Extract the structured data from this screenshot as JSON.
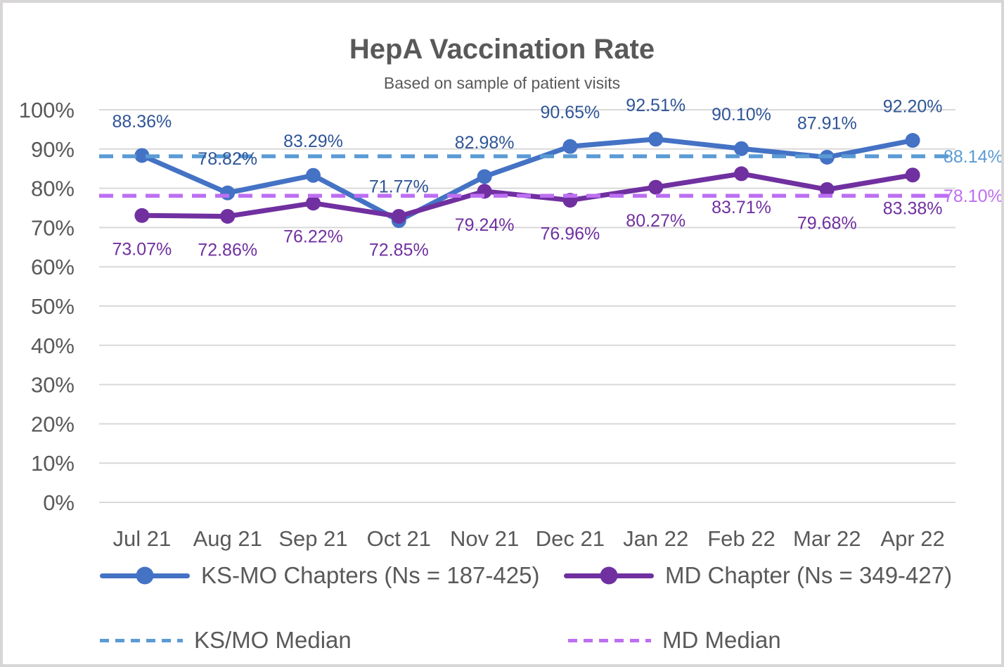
{
  "chart_data": {
    "type": "line",
    "title": "HepA Vaccination Rate",
    "subtitle": "Based on sample of patient visits",
    "categories": [
      "Jul 21",
      "Aug 21",
      "Sep 21",
      "Oct 21",
      "Nov 21",
      "Dec 21",
      "Jan 22",
      "Feb 22",
      "Mar 22",
      "Apr 22"
    ],
    "series": [
      {
        "name": "KS-MO Chapters (Ns = 187-425)",
        "color": "#4472C4",
        "label_color": "#2F5597",
        "values": [
          88.36,
          78.82,
          83.29,
          71.77,
          82.98,
          90.65,
          92.51,
          90.1,
          87.91,
          92.2
        ],
        "data_labels": [
          "88.36%",
          "78.82%",
          "83.29%",
          "71.77%",
          "82.98%",
          "90.65%",
          "92.51%",
          "90.10%",
          "87.91%",
          "92.20%"
        ]
      },
      {
        "name": "MD Chapter (Ns = 349-427)",
        "color": "#7030A0",
        "label_color": "#7030A0",
        "values": [
          73.07,
          72.86,
          76.22,
          72.85,
          79.24,
          76.96,
          80.27,
          83.71,
          79.68,
          83.38
        ],
        "data_labels": [
          "73.07%",
          "72.86%",
          "76.22%",
          "72.85%",
          "79.24%",
          "76.96%",
          "80.27%",
          "83.71%",
          "79.68%",
          "83.38%"
        ]
      }
    ],
    "reference_lines": [
      {
        "name": "KS/MO Median",
        "value": 88.14,
        "label": "88.14%",
        "color": "#5B9BD5",
        "style": "dashed"
      },
      {
        "name": "MD Median",
        "value": 78.1,
        "label": "78.10%",
        "color": "#BD6FF2",
        "style": "dashed"
      }
    ],
    "y_axis": {
      "min": 0,
      "max": 100,
      "tick_values": [
        0,
        10,
        20,
        30,
        40,
        50,
        60,
        70,
        80,
        90,
        100
      ],
      "tick_labels": [
        "0%",
        "10%",
        "20%",
        "30%",
        "40%",
        "50%",
        "60%",
        "70%",
        "80%",
        "90%",
        "100%"
      ],
      "grid": true
    },
    "legend_position": "bottom",
    "colors": {
      "axis_text": "#595959",
      "gridline": "#D9D9D9",
      "title_text": "#595959"
    }
  }
}
